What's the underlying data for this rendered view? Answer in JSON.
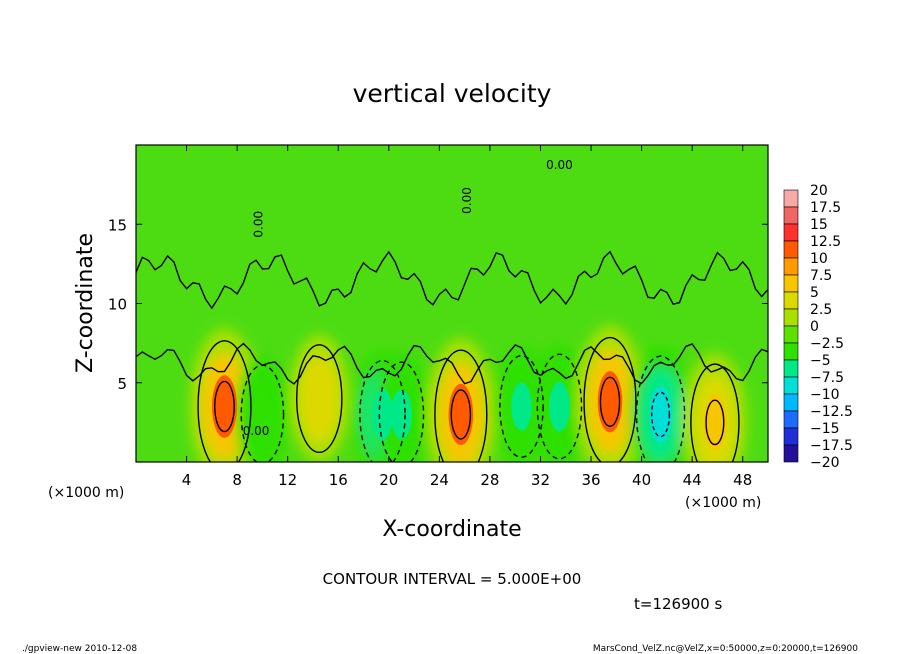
{
  "chart_data": {
    "type": "heatmap",
    "title": "vertical velocity",
    "xlabel": "X-coordinate",
    "ylabel": "Z-coordinate",
    "x_unit_left": "(×1000 m)",
    "x_unit_right": "(×1000 m)",
    "xlim": [
      0,
      50
    ],
    "ylim": [
      0,
      20
    ],
    "x_ticks": [
      "4",
      "8",
      "12",
      "16",
      "20",
      "24",
      "28",
      "32",
      "36",
      "40",
      "44",
      "48"
    ],
    "x_tick_values": [
      4,
      8,
      12,
      16,
      20,
      24,
      28,
      32,
      36,
      40,
      44,
      48
    ],
    "y_ticks": [
      "5",
      "10",
      "15"
    ],
    "y_tick_values": [
      5,
      10,
      15
    ],
    "contour_label": "0.00",
    "colorbar_labels": [
      "20",
      "17.5",
      "15",
      "12.5",
      "10",
      "7.5",
      "5",
      "2.5",
      "0",
      "−2.5",
      "−5",
      "−7.5",
      "−10",
      "−12.5",
      "−15",
      "−17.5",
      "−20"
    ],
    "colorbar_values": [
      20,
      17.5,
      15,
      12.5,
      10,
      7.5,
      5,
      2.5,
      0,
      -2.5,
      -5,
      -7.5,
      -10,
      -12.5,
      -15,
      -17.5,
      -20
    ],
    "colorbar_colors": [
      "#f9a8a8",
      "#f26565",
      "#ff3030",
      "#ff5a00",
      "#ff9a00",
      "#f7c600",
      "#dcd900",
      "#a8e000",
      "#5ee000",
      "#2fe000",
      "#00e888",
      "#00e0d8",
      "#00b8ff",
      "#1e6bff",
      "#1f2fd8",
      "#22109a",
      "#5a1fb0"
    ],
    "features": [
      {
        "x": 7,
        "z": 3.5,
        "w": 15
      },
      {
        "x": 10,
        "z": 3,
        "w": -4
      },
      {
        "x": 14.5,
        "z": 4,
        "w": 7
      },
      {
        "x": 19.5,
        "z": 3,
        "w": -7
      },
      {
        "x": 21,
        "z": 3,
        "w": -6
      },
      {
        "x": 25.7,
        "z": 3,
        "w": 14
      },
      {
        "x": 30.5,
        "z": 3.5,
        "w": -5
      },
      {
        "x": 33.5,
        "z": 3.5,
        "w": -6
      },
      {
        "x": 37.5,
        "z": 3.8,
        "w": 14
      },
      {
        "x": 41.5,
        "z": 3,
        "w": -10
      },
      {
        "x": 45.8,
        "z": 2.5,
        "w": 10
      }
    ],
    "contour_interval_text": "CONTOUR INTERVAL = 5.000E+00",
    "time_text": "t=126900 s"
  },
  "footer": {
    "left": "./gpview-new  2010-12-08",
    "right": "MarsCond_VelZ.nc@VelZ,x=0:50000,z=0:20000,t=126900"
  }
}
